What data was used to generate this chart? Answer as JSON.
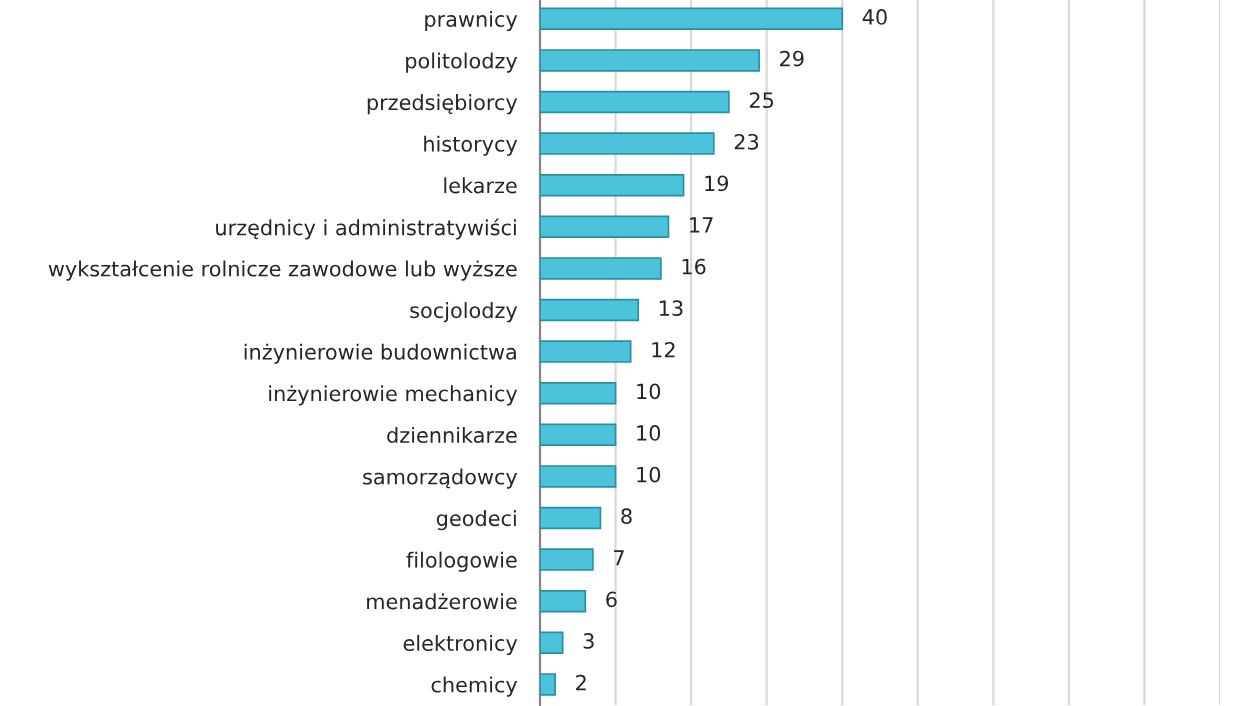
{
  "chart_data": {
    "type": "bar",
    "orientation": "horizontal",
    "categories": [
      "prawnicy",
      "politolodzy",
      "przedsiębiorcy",
      "historycy",
      "lekarze",
      "urzędnicy i administratywiści",
      "wykształcenie rolnicze zawodowe lub wyższe",
      "socjolodzy",
      "inżynierowie budownictwa",
      "inżynierowie mechanicy",
      "dziennikarze",
      "samorządowcy",
      "geodeci",
      "filologowie",
      "menadżerowie",
      "elektronicy",
      "chemicy"
    ],
    "values": [
      40,
      29,
      25,
      23,
      19,
      17,
      16,
      13,
      12,
      10,
      10,
      10,
      8,
      7,
      6,
      3,
      2
    ],
    "color": "#4bc3da",
    "data_labels": true,
    "xlim": [
      0,
      90
    ],
    "xticks": [
      {
        "value": 0,
        "label": null
      },
      {
        "value": 10,
        "label": null
      },
      {
        "value": 20,
        "label": null
      },
      {
        "value": 30,
        "label": null
      },
      {
        "value": 40,
        "label": null
      },
      {
        "value": 50,
        "label": null
      },
      {
        "value": 60,
        "label": null
      },
      {
        "value": 70,
        "label": null
      },
      {
        "value": 80,
        "label": null
      },
      {
        "value": 90,
        "label": null
      }
    ],
    "grid": "x",
    "tick_labels": "y",
    "legend": false
  }
}
